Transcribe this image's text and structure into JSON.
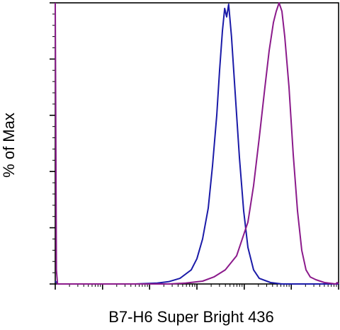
{
  "chart_data": {
    "type": "line",
    "title": "",
    "xlabel": "B7-H6 Super Bright 436",
    "ylabel": "% of Max",
    "x_scale": "log",
    "x_tick_labels_visible": false,
    "y_tick_labels_visible": false,
    "ylim": [
      0,
      100
    ],
    "grid": false,
    "legend": "none",
    "series": [
      {
        "color": "#1a1aa8",
        "points": [
          [
            0.0,
            1.0
          ],
          [
            0.01,
            0.0
          ],
          [
            0.28,
            0.0
          ],
          [
            0.36,
            0.3
          ],
          [
            0.4,
            0.8
          ],
          [
            0.44,
            2.0
          ],
          [
            0.48,
            5.0
          ],
          [
            0.5,
            9.0
          ],
          [
            0.52,
            16.0
          ],
          [
            0.54,
            27.0
          ],
          [
            0.555,
            42.0
          ],
          [
            0.57,
            60.0
          ],
          [
            0.58,
            76.0
          ],
          [
            0.59,
            90.0
          ],
          [
            0.598,
            98.0
          ],
          [
            0.605,
            95.0
          ],
          [
            0.612,
            99.5
          ],
          [
            0.622,
            88.0
          ],
          [
            0.635,
            68.0
          ],
          [
            0.65,
            45.0
          ],
          [
            0.665,
            26.0
          ],
          [
            0.68,
            13.0
          ],
          [
            0.7,
            5.0
          ],
          [
            0.72,
            2.0
          ],
          [
            0.76,
            0.5
          ],
          [
            0.8,
            0.0
          ],
          [
            1.0,
            0.0
          ]
        ]
      },
      {
        "color": "#8b1a8b",
        "points": [
          [
            0.0,
            100.0
          ],
          [
            0.002,
            55.0
          ],
          [
            0.004,
            5.0
          ],
          [
            0.008,
            0.0
          ],
          [
            0.4,
            0.0
          ],
          [
            0.46,
            0.3
          ],
          [
            0.52,
            1.0
          ],
          [
            0.56,
            2.5
          ],
          [
            0.6,
            5.0
          ],
          [
            0.64,
            10.0
          ],
          [
            0.68,
            22.0
          ],
          [
            0.7,
            35.0
          ],
          [
            0.72,
            52.0
          ],
          [
            0.74,
            70.0
          ],
          [
            0.755,
            83.0
          ],
          [
            0.77,
            93.0
          ],
          [
            0.78,
            97.0
          ],
          [
            0.79,
            100.0
          ],
          [
            0.8,
            97.0
          ],
          [
            0.81,
            88.0
          ],
          [
            0.825,
            70.0
          ],
          [
            0.84,
            46.0
          ],
          [
            0.855,
            26.0
          ],
          [
            0.87,
            12.0
          ],
          [
            0.885,
            5.0
          ],
          [
            0.9,
            2.5
          ],
          [
            0.92,
            1.5
          ],
          [
            0.95,
            0.5
          ],
          [
            0.99,
            0.0
          ],
          [
            0.995,
            0.5
          ],
          [
            1.0,
            0.0
          ]
        ]
      }
    ]
  }
}
